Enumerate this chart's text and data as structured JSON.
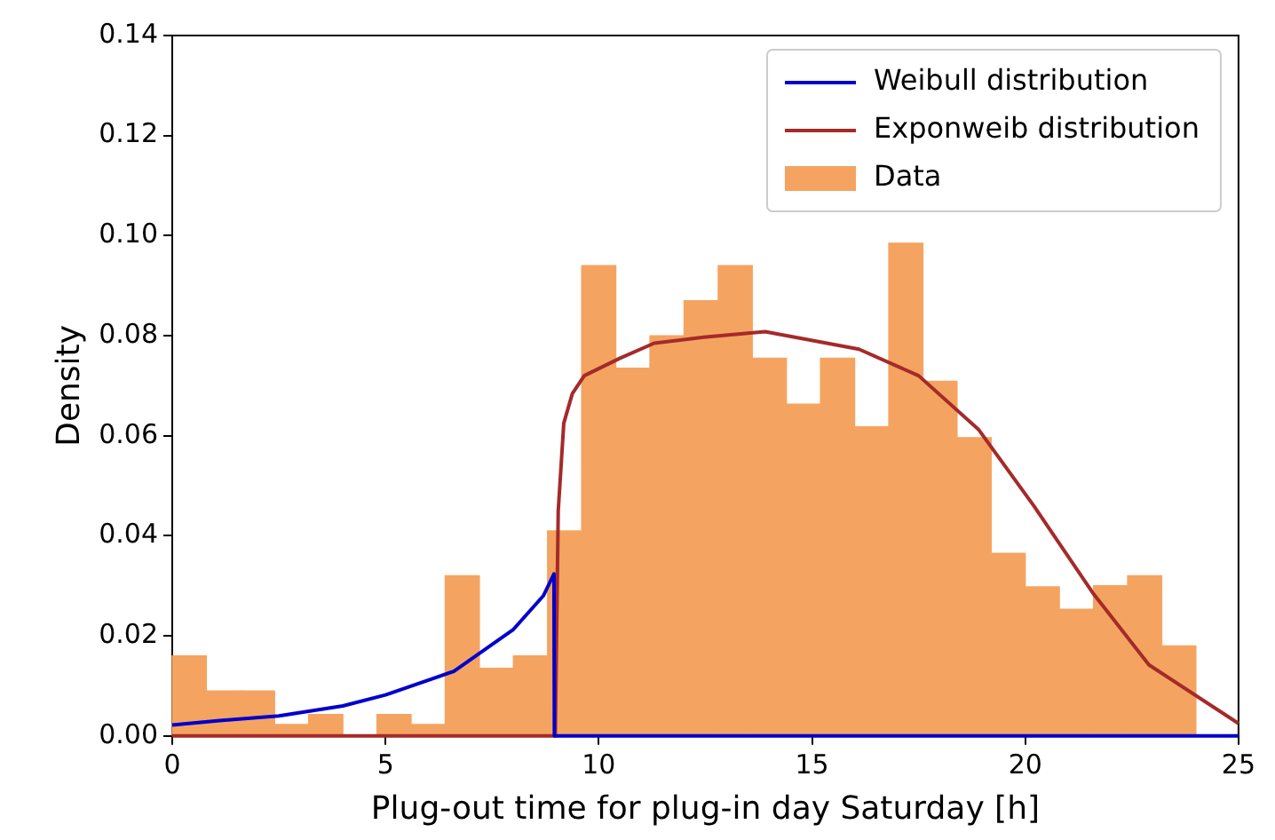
{
  "chart_data": {
    "type": "histogram",
    "xlabel": "Plug-out time for plug-in day Saturday [h]",
    "ylabel": "Density",
    "xlim": [
      0,
      25
    ],
    "xticks": [
      0,
      5,
      10,
      15,
      20,
      25
    ],
    "ylim": [
      0,
      0.14
    ],
    "yticks": [
      {
        "value": 0,
        "label": "0.00"
      },
      {
        "value": 0.02,
        "label": "0.02"
      },
      {
        "value": 0.04,
        "label": "0.04"
      },
      {
        "value": 0.06,
        "label": "0.06"
      },
      {
        "value": 0.08,
        "label": "0.08"
      },
      {
        "value": 0.1,
        "label": "0.10"
      },
      {
        "value": 0.12,
        "label": "0.12"
      },
      {
        "value": 0.14,
        "label": "0.14"
      }
    ],
    "legend": "top right",
    "grid": false,
    "series": [
      {
        "name": "Weibull distribution",
        "type": "line",
        "color": "#0000cc",
        "x": [
          0,
          1,
          2.5,
          4,
          5,
          6.6,
          8,
          8.7,
          8.95,
          8.96,
          25
        ],
        "values": [
          0.0022,
          0.003,
          0.004,
          0.006,
          0.0082,
          0.0129,
          0.0213,
          0.028,
          0.0324,
          0,
          0
        ]
      },
      {
        "name": "Exponweib distribution",
        "type": "line",
        "color": "#a52a2a",
        "x": [
          0,
          8.98,
          9.05,
          9.18,
          9.38,
          9.66,
          10.5,
          11.3,
          12.46,
          13.9,
          16.1,
          17.5,
          18.9,
          20.2,
          21.6,
          22.9,
          25
        ],
        "values": [
          0,
          0,
          0.045,
          0.0625,
          0.0684,
          0.072,
          0.0755,
          0.0785,
          0.0797,
          0.0808,
          0.0773,
          0.072,
          0.0613,
          0.046,
          0.0284,
          0.0142,
          0.0025
        ]
      },
      {
        "name": "Data",
        "color": "#f4a460",
        "bins": [
          0,
          0.8,
          1.6,
          2.4,
          3.2,
          4,
          4.8,
          5.6,
          6.4,
          7.2,
          8,
          8.8,
          9.6,
          10.4,
          11.2,
          12,
          12.8,
          13.6,
          14.4,
          15.2,
          16,
          16.8,
          17.6,
          18.4,
          19.2,
          20,
          20.8,
          21.6,
          22.4,
          23.2,
          24
        ],
        "values": [
          0.016,
          0.009,
          0.009,
          0.0023,
          0.0043,
          0,
          0.0043,
          0.0023,
          0.032,
          0.0135,
          0.016,
          0.041,
          0.094,
          0.0735,
          0.08,
          0.087,
          0.094,
          0.0755,
          0.0663,
          0.0755,
          0.0618,
          0.0985,
          0.0709,
          0.0596,
          0.0365,
          0.0298,
          0.0253,
          0.03,
          0.032,
          0.018
        ]
      }
    ]
  }
}
